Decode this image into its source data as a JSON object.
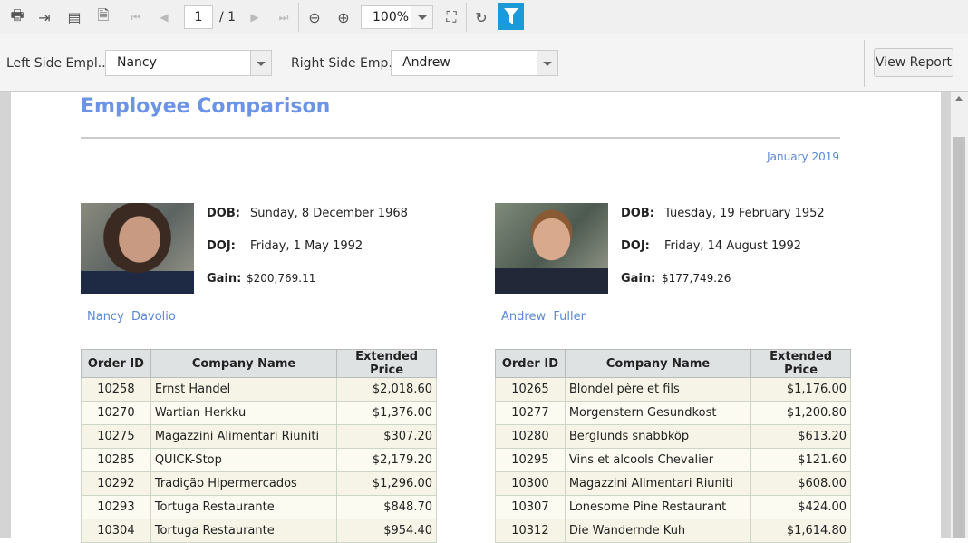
{
  "toolbar": {
    "page_current": "1",
    "page_total": "/ 1",
    "zoom": "100%",
    "icons": [
      "print-icon",
      "export-icon",
      "document-icon",
      "page-setup-icon",
      "first-page-icon",
      "previous-page-icon",
      "next-page-icon",
      "last-page-icon",
      "zoom-out-icon",
      "zoom-in-icon",
      "fit-page-icon",
      "refresh-icon",
      "filter-icon"
    ],
    "accent": "#1a9ad6"
  },
  "params": {
    "left_label": "Left Side Empl...",
    "left_value": "Nancy",
    "right_label": "Right Side Emp...",
    "right_value": "Andrew",
    "view_report": "View Report"
  },
  "report": {
    "title": "Employee Comparison",
    "date": "January 2019",
    "dob_label": "DOB:",
    "doj_label": "DOJ:",
    "gain_label": "Gain:",
    "left": {
      "dob": "Sunday, 8 December 1968",
      "doj": "Friday, 1 May 1992",
      "gain": "$200,769.11",
      "first": "Nancy",
      "last": "Davolio"
    },
    "right": {
      "dob": "Tuesday, 19 February 1952",
      "doj": "Friday, 14 August 1992",
      "gain": "$177,749.26",
      "first": "Andrew",
      "last": "Fuller"
    },
    "columns": [
      "Order ID",
      "Company Name",
      "Extended Price"
    ],
    "left_rows": [
      [
        "10258",
        "Ernst Handel",
        "$2,018.60"
      ],
      [
        "10270",
        "Wartian Herkku",
        "$1,376.00"
      ],
      [
        "10275",
        "Magazzini Alimentari Riuniti",
        "$307.20"
      ],
      [
        "10285",
        "QUICK-Stop",
        "$2,179.20"
      ],
      [
        "10292",
        "Tradição Hipermercados",
        "$1,296.00"
      ],
      [
        "10293",
        "Tortuga Restaurante",
        "$848.70"
      ],
      [
        "10304",
        "Tortuga Restaurante",
        "$954.40"
      ]
    ],
    "right_rows": [
      [
        "10265",
        "Blondel père et fils",
        "$1,176.00"
      ],
      [
        "10277",
        "Morgenstern Gesundkost",
        "$1,200.80"
      ],
      [
        "10280",
        "Berglunds snabbköp",
        "$613.20"
      ],
      [
        "10295",
        "Vins et alcools Chevalier",
        "$121.60"
      ],
      [
        "10300",
        "Magazzini Alimentari Riuniti",
        "$608.00"
      ],
      [
        "10307",
        "Lonesome Pine Restaurant",
        "$424.00"
      ],
      [
        "10312",
        "Die Wandernde Kuh",
        "$1,614.80"
      ]
    ]
  }
}
